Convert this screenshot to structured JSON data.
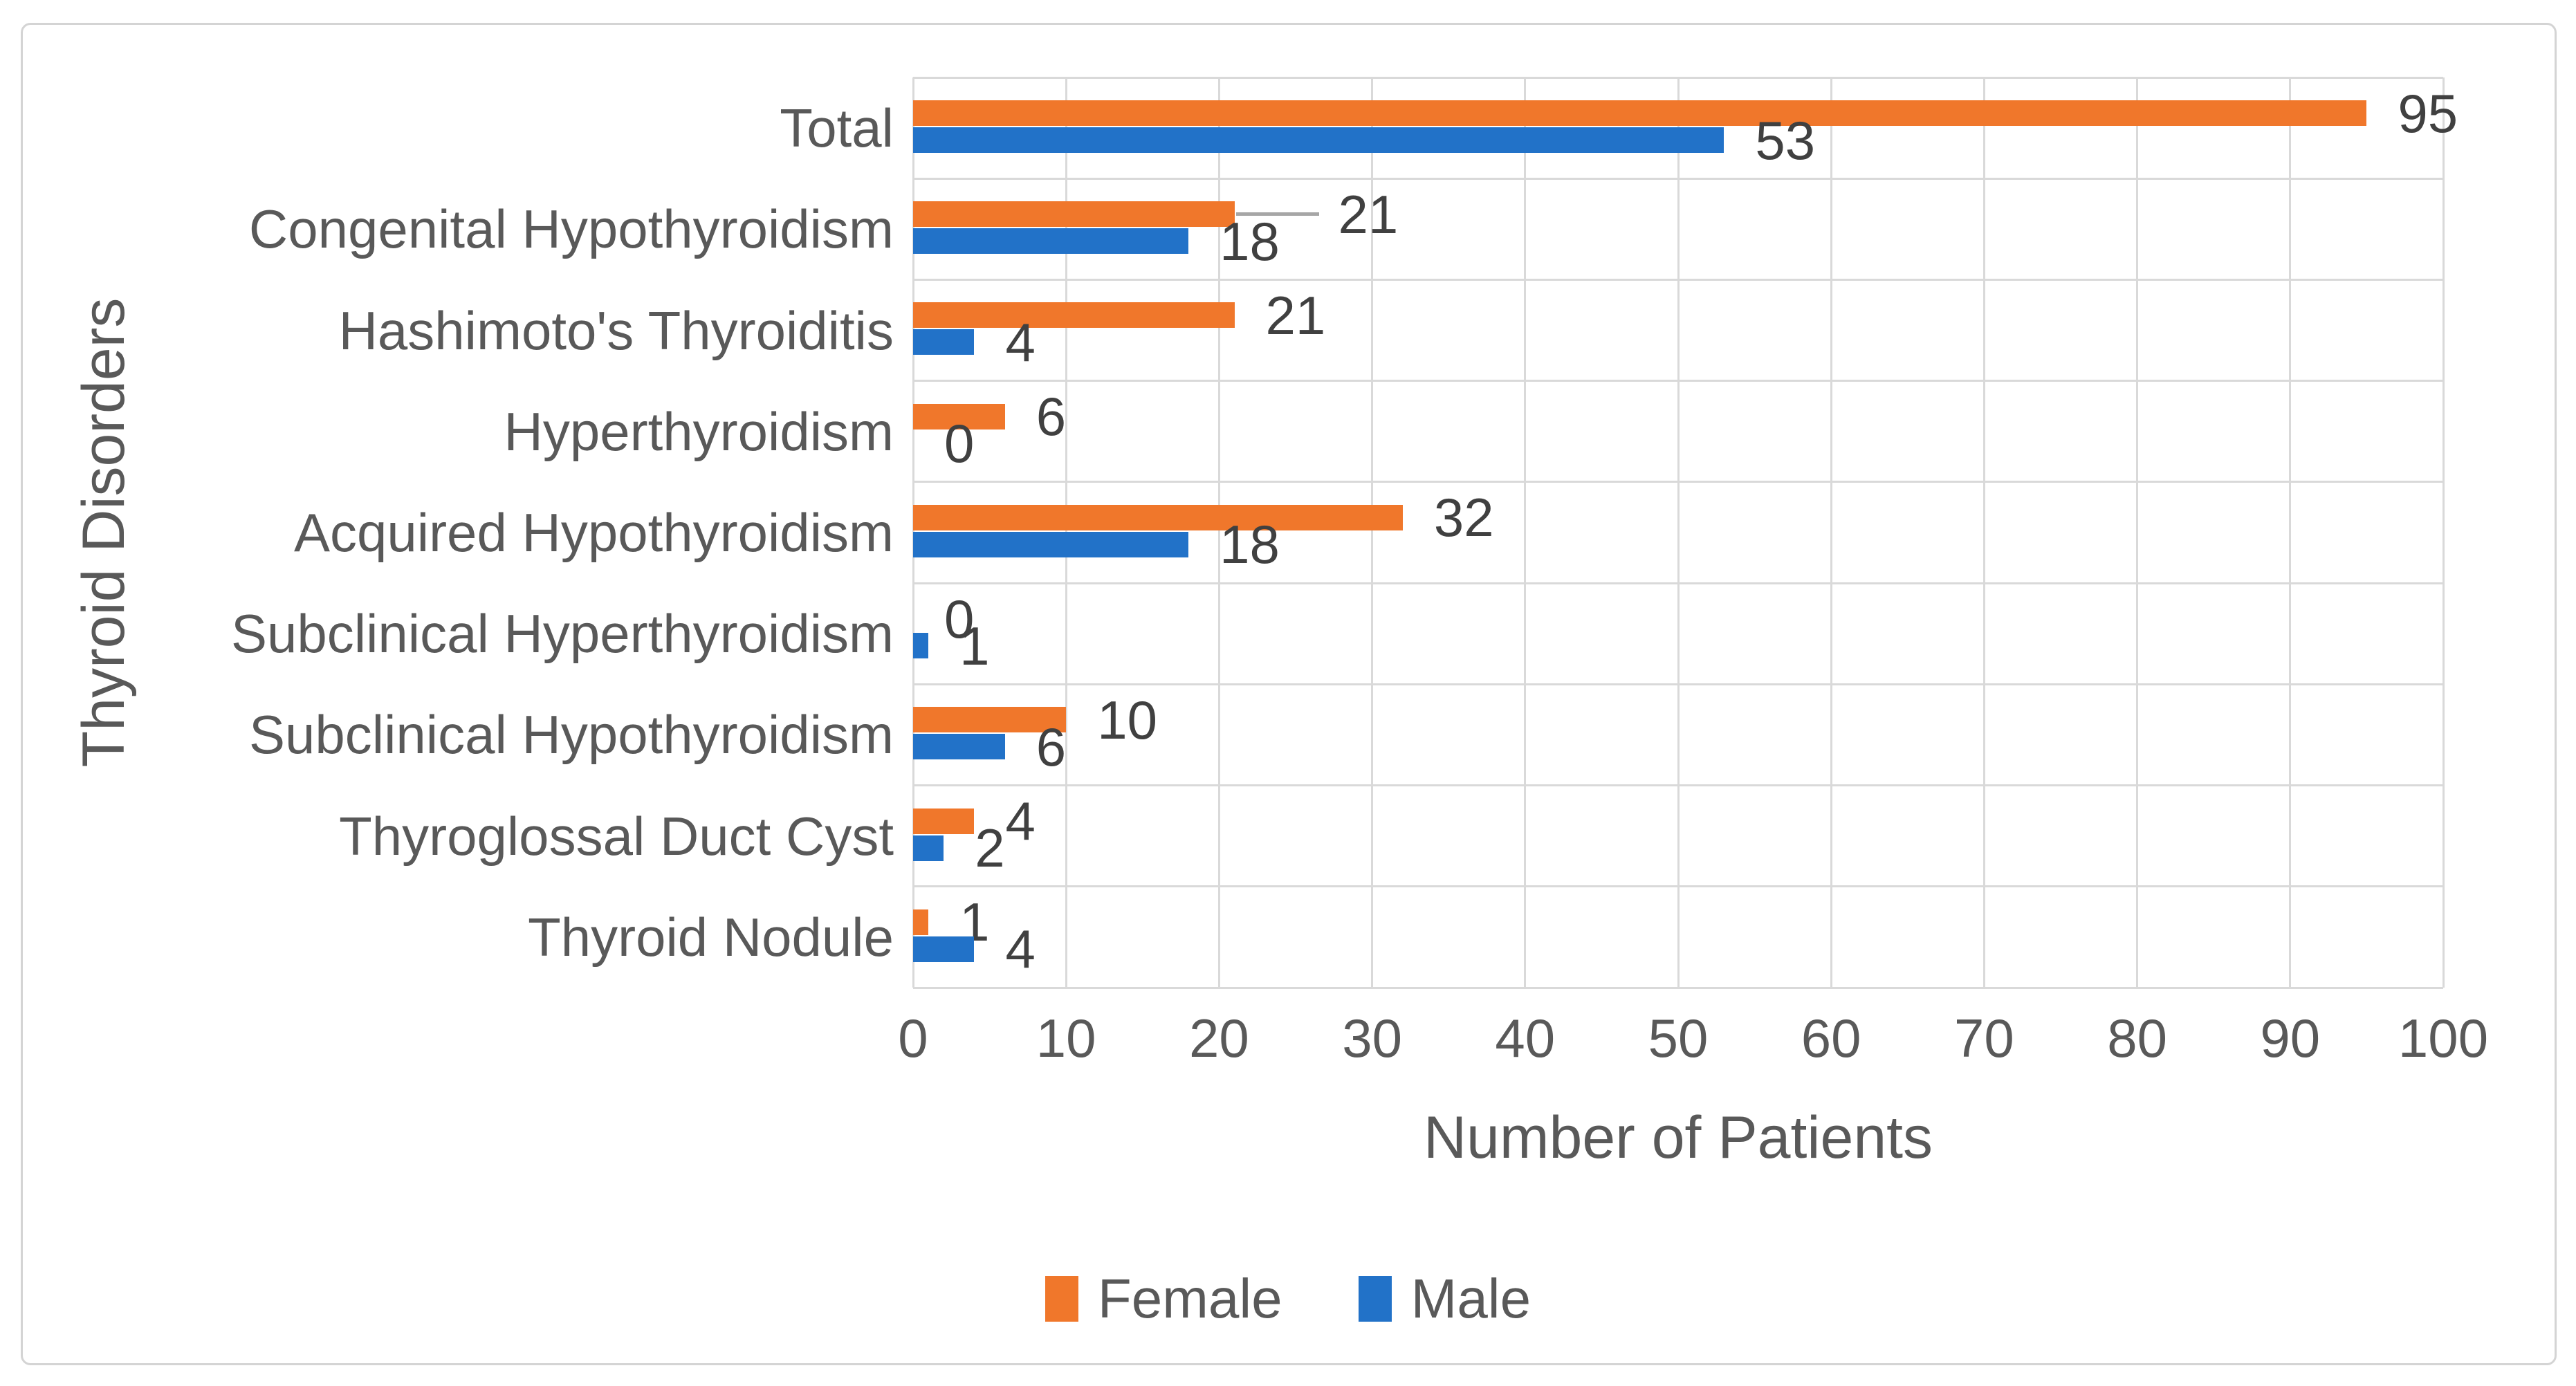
{
  "chart_data": {
    "type": "bar",
    "orientation": "horizontal",
    "categories": [
      "Total",
      "Congenital Hypothyroidism",
      "Hashimoto's Thyroiditis",
      "Hyperthyroidism",
      "Acquired Hypothyroidism",
      "Subclinical Hyperthyroidism",
      "Subclinical Hypothyroidism",
      "Thyroglossal Duct Cyst",
      "Thyroid Nodule"
    ],
    "series": [
      {
        "name": "Female",
        "color": "#F0772B",
        "values": [
          95,
          21,
          21,
          6,
          32,
          0,
          10,
          4,
          1
        ]
      },
      {
        "name": "Male",
        "color": "#2272C8",
        "values": [
          53,
          18,
          4,
          0,
          18,
          1,
          6,
          2,
          4
        ]
      }
    ],
    "xlabel": "Number of Patients",
    "ylabel": "Thyroid Disorders",
    "xlim": [
      0,
      100
    ],
    "xticks": [
      0,
      10,
      20,
      30,
      40,
      50,
      60,
      70,
      80,
      90,
      100
    ],
    "grid": true,
    "data_labels": true,
    "legend_position": "bottom",
    "leader_lines": [
      {
        "category_index": 1,
        "series": "Female"
      }
    ]
  },
  "colors": {
    "background": "#FFFFFF",
    "frame_border": "#D4D4D4",
    "gridline": "#D9D9D9",
    "axis_text": "#595959",
    "data_label_text": "#404040",
    "leader_line": "#A6A6A6"
  }
}
